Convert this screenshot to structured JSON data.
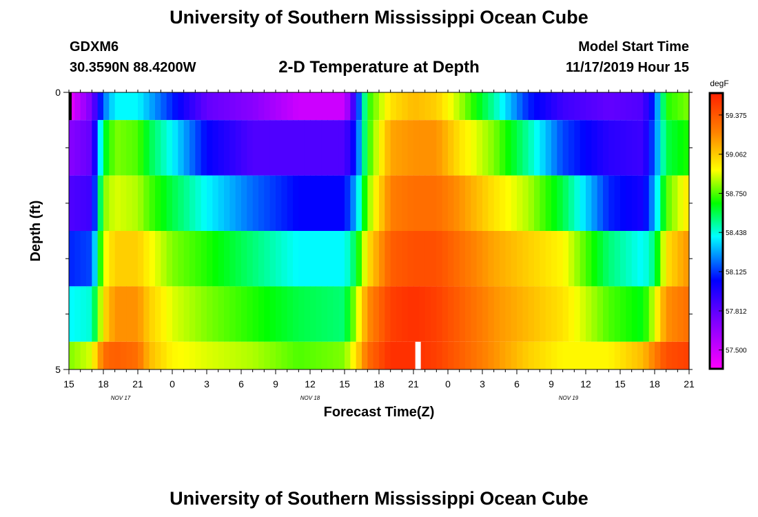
{
  "header": {
    "title": "University of Southern Mississippi Ocean Cube",
    "station": "GDXM6",
    "location": "30.3590N 88.4200W",
    "plot_title": "2-D Temperature at Depth",
    "model_start_label": "Model Start Time",
    "model_start_value": "11/17/2019 Hour 15",
    "footer_title": "University of Southern Mississippi Ocean Cube"
  },
  "chart_data": {
    "type": "heatmap",
    "title": "2-D Temperature at Depth",
    "xlabel": "Forecast Time(Z)",
    "ylabel": "Depth (ft)",
    "ylim": [
      0,
      5
    ],
    "y_ticks": [
      "0",
      "5"
    ],
    "x_tick_labels": [
      "15",
      "18",
      "21",
      "0",
      "3",
      "6",
      "9",
      "12",
      "15",
      "18",
      "21",
      "0",
      "3",
      "6",
      "9",
      "12",
      "15",
      "18",
      "21"
    ],
    "x_ticks_hours": [
      0,
      3,
      6,
      9,
      12,
      15,
      18,
      21,
      24,
      27,
      30,
      33,
      36,
      39,
      42,
      45,
      48,
      51,
      54
    ],
    "date_labels": [
      {
        "label": "NOV 17",
        "hour": 4.5
      },
      {
        "label": "NOV 18",
        "hour": 21
      },
      {
        "label": "NOV 19",
        "hour": 43.5
      }
    ],
    "colorbar": {
      "unit": "degF",
      "ticks": [
        "59.375",
        "59.062",
        "58.750",
        "58.438",
        "58.125",
        "57.812",
        "57.500"
      ],
      "min": 57.35,
      "max": 59.55
    },
    "rows": [
      "0-0.5 ft",
      "0.5-1.5 ft",
      "1.5-2.5 ft",
      "2.5-3.5 ft",
      "3.5-4.5 ft",
      "4.5-5 ft"
    ],
    "control_points": [
      {
        "hour": 0,
        "values": [
          57.4,
          57.7,
          57.85,
          58.1,
          58.4,
          58.8
        ]
      },
      {
        "hour": 2,
        "values": [
          57.75,
          57.8,
          57.9,
          58.15,
          58.45,
          58.9
        ]
      },
      {
        "hour": 3,
        "values": [
          58.2,
          58.6,
          58.8,
          58.9,
          59.0,
          59.3
        ]
      },
      {
        "hour": 4,
        "values": [
          58.4,
          58.8,
          58.9,
          59.05,
          59.2,
          59.35
        ]
      },
      {
        "hour": 6,
        "values": [
          58.4,
          58.75,
          58.85,
          59.05,
          59.2,
          59.3
        ]
      },
      {
        "hour": 7,
        "values": [
          58.3,
          58.6,
          58.75,
          58.95,
          59.05,
          59.1
        ]
      },
      {
        "hour": 9,
        "values": [
          58.1,
          58.4,
          58.6,
          58.8,
          58.9,
          58.95
        ]
      },
      {
        "hour": 12,
        "values": [
          57.8,
          58.05,
          58.4,
          58.7,
          58.8,
          58.9
        ]
      },
      {
        "hour": 16,
        "values": [
          57.7,
          57.85,
          58.2,
          58.55,
          58.7,
          58.85
        ]
      },
      {
        "hour": 20,
        "values": [
          57.5,
          57.85,
          58.05,
          58.4,
          58.6,
          58.75
        ]
      },
      {
        "hour": 24,
        "values": [
          57.5,
          57.85,
          58.05,
          58.4,
          58.55,
          58.8
        ]
      },
      {
        "hour": 25,
        "values": [
          58.0,
          58.1,
          58.3,
          58.6,
          58.85,
          59.0
        ]
      },
      {
        "hour": 26,
        "values": [
          58.7,
          58.7,
          58.8,
          59.0,
          59.2,
          59.3
        ]
      },
      {
        "hour": 28,
        "values": [
          59.0,
          59.15,
          59.25,
          59.35,
          59.45,
          59.5
        ]
      },
      {
        "hour": 30,
        "values": [
          59.1,
          59.2,
          59.3,
          59.4,
          59.5,
          59.5
        ]
      },
      {
        "hour": 32,
        "values": [
          59.05,
          59.2,
          59.3,
          59.4,
          59.45,
          59.45
        ]
      },
      {
        "hour": 34,
        "values": [
          58.85,
          59.0,
          59.2,
          59.3,
          59.35,
          59.35
        ]
      },
      {
        "hour": 37,
        "values": [
          58.5,
          58.8,
          59.0,
          59.15,
          59.2,
          59.2
        ]
      },
      {
        "hour": 40,
        "values": [
          58.1,
          58.5,
          58.85,
          59.05,
          59.1,
          59.05
        ]
      },
      {
        "hour": 43,
        "values": [
          57.9,
          58.15,
          58.6,
          58.95,
          59.0,
          58.95
        ]
      },
      {
        "hour": 47,
        "values": [
          57.8,
          57.95,
          58.1,
          58.55,
          58.75,
          58.95
        ]
      },
      {
        "hour": 50,
        "values": [
          57.85,
          57.9,
          58.0,
          58.4,
          58.65,
          59.1
        ]
      },
      {
        "hour": 51,
        "values": [
          58.15,
          58.2,
          58.3,
          58.55,
          58.9,
          59.25
        ]
      },
      {
        "hour": 52,
        "values": [
          58.7,
          58.6,
          58.75,
          59.0,
          59.2,
          59.4
        ]
      },
      {
        "hour": 54,
        "values": [
          58.8,
          58.7,
          59.0,
          59.2,
          59.3,
          59.45
        ]
      }
    ],
    "grid": false,
    "legend": "right"
  }
}
